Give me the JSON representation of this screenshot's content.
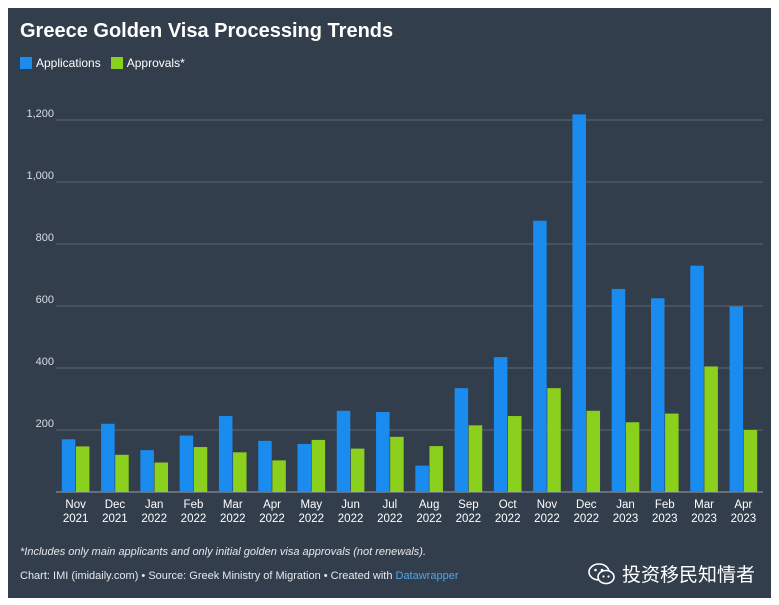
{
  "title": "Greece Golden Visa Processing Trends",
  "legend": {
    "applications": "Applications",
    "approvals": "Approvals*"
  },
  "colors": {
    "background": "#333e4c",
    "applications": "#1a8cf0",
    "approvals": "#8cd01e",
    "grid": "#5c6674",
    "text": "#ffffff"
  },
  "footnote": "*Includes only main applicants and only initial golden visa approvals (not renewals).",
  "credit": {
    "prefix": "Chart: IMI (imidaily.com) • Source: Greek Ministry of Migration • Created with ",
    "tool": "Datawrapper"
  },
  "watermark": {
    "icon": "wechat-icon",
    "text": "投资移民知情者"
  },
  "chart_data": {
    "type": "bar",
    "categories": [
      [
        "Nov",
        "2021"
      ],
      [
        "Dec",
        "2021"
      ],
      [
        "Jan",
        "2022"
      ],
      [
        "Feb",
        "2022"
      ],
      [
        "Mar",
        "2022"
      ],
      [
        "Apr",
        "2022"
      ],
      [
        "May",
        "2022"
      ],
      [
        "Jun",
        "2022"
      ],
      [
        "Jul",
        "2022"
      ],
      [
        "Aug",
        "2022"
      ],
      [
        "Sep",
        "2022"
      ],
      [
        "Oct",
        "2022"
      ],
      [
        "Nov",
        "2022"
      ],
      [
        "Dec",
        "2022"
      ],
      [
        "Jan",
        "2023"
      ],
      [
        "Feb",
        "2023"
      ],
      [
        "Mar",
        "2023"
      ],
      [
        "Apr",
        "2023"
      ]
    ],
    "series": [
      {
        "name": "Applications",
        "values": [
          170,
          220,
          135,
          182,
          245,
          165,
          155,
          262,
          258,
          85,
          335,
          435,
          875,
          1218,
          655,
          625,
          730,
          598
        ]
      },
      {
        "name": "Approvals*",
        "values": [
          147,
          120,
          95,
          145,
          128,
          102,
          168,
          140,
          178,
          148,
          215,
          245,
          335,
          262,
          225,
          253,
          405,
          200
        ]
      }
    ],
    "ylim": [
      0,
      1200
    ],
    "yticks": [
      200,
      400,
      600,
      800,
      1000,
      1200
    ],
    "ytick_labels": [
      "200",
      "400",
      "600",
      "800",
      "1,000",
      "1,200"
    ],
    "grid": true,
    "legend_position": "top-left"
  }
}
